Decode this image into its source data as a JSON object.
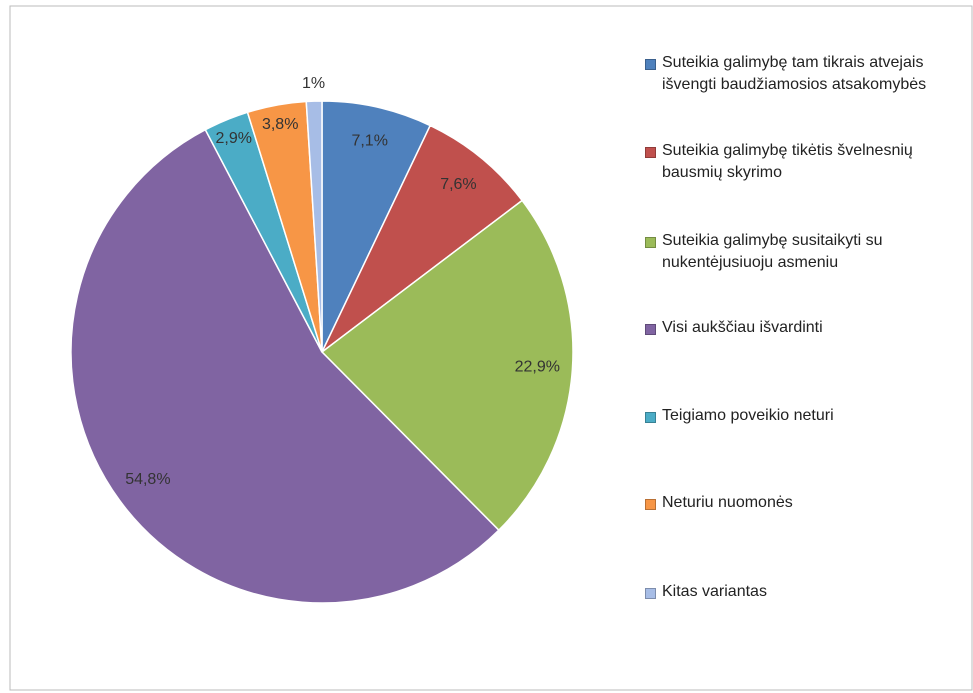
{
  "chart_data": {
    "type": "pie",
    "series": [
      {
        "name": "Suteikia galimybę tam tikrais atvejais išvengti baudžiamosios atsakomybės",
        "color": "#4f81bd"
      },
      {
        "name": "Suteikia galimybę tikėtis švelnesnių bausmių skyrimo",
        "color": "#c0504d"
      },
      {
        "name": "Suteikia galimybę susitaikyti su nukentėjusiuoju asmeniu",
        "color": "#9bbb59"
      },
      {
        "name": "Visi aukščiau išvardinti",
        "color": "#8064a2"
      },
      {
        "name": "Teigiamo poveikio neturi",
        "color": "#4bacc6"
      },
      {
        "name": "Neturiu nuomonės",
        "color": "#f79646"
      },
      {
        "name": "Kitas variantas",
        "color": "#a7bde6"
      }
    ],
    "values": [
      7.1,
      7.6,
      22.9,
      54.8,
      2.9,
      3.8,
      1
    ],
    "value_labels": [
      "7,1%",
      "7,6%",
      "22,9%",
      "54,8%",
      "2,9%",
      "3,8%",
      "1%"
    ]
  }
}
